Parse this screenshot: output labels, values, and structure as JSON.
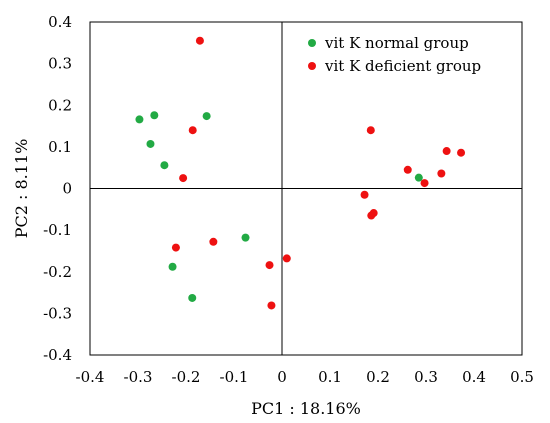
{
  "chart_data": {
    "type": "scatter",
    "xlabel": "PC1 : 18.16%",
    "ylabel": "PC2 : 8.11%",
    "xlim": [
      -0.4,
      0.5
    ],
    "ylim": [
      -0.4,
      0.4
    ],
    "x_ticks": [
      "-0.4",
      "-0.3",
      "-0.2",
      "-0.1",
      "0",
      "0.1",
      "0.2",
      "0.3",
      "0.4",
      "0.5"
    ],
    "y_ticks": [
      "0.4",
      "0.3",
      "0.2",
      "0.1",
      "0",
      "-0.1",
      "-0.2",
      "-0.3",
      "-0.4"
    ],
    "x_tick_values": [
      -0.4,
      -0.3,
      -0.2,
      -0.1,
      0,
      0.1,
      0.2,
      0.3,
      0.4,
      0.5
    ],
    "y_tick_values": [
      0.4,
      0.3,
      0.2,
      0.1,
      0,
      -0.1,
      -0.2,
      -0.3,
      -0.4
    ],
    "grid": false,
    "reference_lines": {
      "x": 0,
      "y": 0
    },
    "legend_position": "top-right",
    "series": [
      {
        "name": "vit K normal group",
        "color": "#22aa44",
        "points": [
          [
            -0.297,
            0.166
          ],
          [
            -0.266,
            0.176
          ],
          [
            -0.274,
            0.107
          ],
          [
            -0.245,
            0.056
          ],
          [
            -0.157,
            0.174
          ],
          [
            -0.076,
            -0.118
          ],
          [
            -0.228,
            -0.188
          ],
          [
            -0.187,
            -0.263
          ],
          [
            0.285,
            0.026
          ]
        ]
      },
      {
        "name": "vit K deficient group",
        "color": "#ee1111",
        "points": [
          [
            -0.171,
            0.355
          ],
          [
            -0.186,
            0.14
          ],
          [
            -0.206,
            0.025
          ],
          [
            -0.221,
            -0.142
          ],
          [
            -0.143,
            -0.128
          ],
          [
            -0.026,
            -0.184
          ],
          [
            -0.022,
            -0.281
          ],
          [
            0.01,
            -0.168
          ],
          [
            0.185,
            0.14
          ],
          [
            0.172,
            -0.015
          ],
          [
            0.186,
            -0.065
          ],
          [
            0.191,
            -0.059
          ],
          [
            0.262,
            0.045
          ],
          [
            0.297,
            0.013
          ],
          [
            0.343,
            0.09
          ],
          [
            0.332,
            0.036
          ],
          [
            0.373,
            0.086
          ]
        ]
      }
    ]
  }
}
